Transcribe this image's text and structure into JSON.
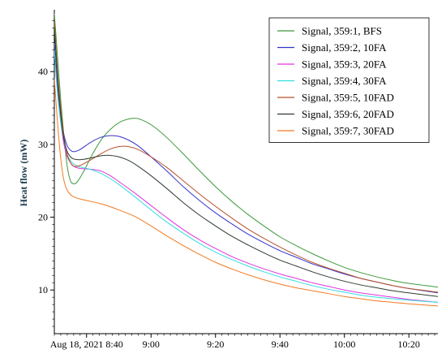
{
  "chart_data": {
    "type": "line",
    "title": "",
    "xlabel": "",
    "ylabel": "Heat flow (mW)",
    "x_unit": "minutes after 8:30",
    "xlim": [
      0,
      119
    ],
    "ylim": [
      4,
      48.5
    ],
    "x_ticks": [
      {
        "x": 10,
        "label": "Aug 18, 2021 8:40"
      },
      {
        "x": 30,
        "label": "9:00"
      },
      {
        "x": 50,
        "label": "9:20"
      },
      {
        "x": 70,
        "label": "9:40"
      },
      {
        "x": 90,
        "label": "10:00"
      },
      {
        "x": 110,
        "label": "10:20"
      }
    ],
    "y_ticks": [
      10,
      20,
      30,
      40
    ],
    "grid": false,
    "legend_position": "top-right",
    "series": [
      {
        "name": "Signal, 359:1, BFS",
        "color": "#3c9a3c",
        "points": [
          [
            0,
            48
          ],
          [
            1,
            42
          ],
          [
            2,
            36
          ],
          [
            3,
            31
          ],
          [
            4,
            27
          ],
          [
            5,
            25
          ],
          [
            6,
            24.6
          ],
          [
            7,
            24.8
          ],
          [
            9,
            26.2
          ],
          [
            12,
            28.8
          ],
          [
            15,
            30.9
          ],
          [
            18,
            32.3
          ],
          [
            21,
            33.2
          ],
          [
            25,
            33.6
          ],
          [
            28,
            33.2
          ],
          [
            31,
            32.4
          ],
          [
            35,
            30.9
          ],
          [
            40,
            28.7
          ],
          [
            45,
            26.4
          ],
          [
            50,
            24.2
          ],
          [
            55,
            22.2
          ],
          [
            60,
            20.4
          ],
          [
            65,
            18.8
          ],
          [
            70,
            17.3
          ],
          [
            75,
            16.1
          ],
          [
            80,
            15.0
          ],
          [
            85,
            14.0
          ],
          [
            90,
            13.1
          ],
          [
            95,
            12.4
          ],
          [
            100,
            11.8
          ],
          [
            105,
            11.3
          ],
          [
            110,
            10.9
          ],
          [
            119,
            10.4
          ]
        ]
      },
      {
        "name": "Signal, 359:2, 10FA",
        "color": "#3333cc",
        "points": [
          [
            0,
            44
          ],
          [
            1,
            38
          ],
          [
            2,
            34
          ],
          [
            3,
            31.3
          ],
          [
            4,
            29.8
          ],
          [
            5,
            29.2
          ],
          [
            6,
            29.0
          ],
          [
            8,
            29.3
          ],
          [
            11,
            30.2
          ],
          [
            14,
            30.9
          ],
          [
            17,
            31.2
          ],
          [
            20,
            31.1
          ],
          [
            23,
            30.6
          ],
          [
            26,
            29.8
          ],
          [
            30,
            28.3
          ],
          [
            35,
            26.3
          ],
          [
            40,
            24.2
          ],
          [
            45,
            22.3
          ],
          [
            50,
            20.6
          ],
          [
            55,
            19.1
          ],
          [
            60,
            17.7
          ],
          [
            65,
            16.5
          ],
          [
            70,
            15.4
          ],
          [
            75,
            14.5
          ],
          [
            80,
            13.6
          ],
          [
            85,
            12.9
          ],
          [
            90,
            12.2
          ],
          [
            95,
            11.6
          ],
          [
            100,
            11.1
          ],
          [
            105,
            10.6
          ],
          [
            110,
            10.2
          ],
          [
            119,
            9.6
          ]
        ]
      },
      {
        "name": "Signal, 359:3, 20FA",
        "color": "#e033e0",
        "points": [
          [
            0,
            43
          ],
          [
            1,
            37
          ],
          [
            2,
            33
          ],
          [
            3,
            30
          ],
          [
            4,
            28.3
          ],
          [
            5,
            27.5
          ],
          [
            6,
            27.0
          ],
          [
            8,
            26.7
          ],
          [
            11,
            26.6
          ],
          [
            14,
            26.4
          ],
          [
            17,
            25.8
          ],
          [
            20,
            24.9
          ],
          [
            25,
            23.3
          ],
          [
            30,
            21.6
          ],
          [
            35,
            19.9
          ],
          [
            40,
            18.3
          ],
          [
            45,
            16.9
          ],
          [
            50,
            15.7
          ],
          [
            55,
            14.6
          ],
          [
            60,
            13.7
          ],
          [
            65,
            12.9
          ],
          [
            70,
            12.2
          ],
          [
            75,
            11.6
          ],
          [
            80,
            11.0
          ],
          [
            85,
            10.5
          ],
          [
            90,
            10.0
          ],
          [
            95,
            9.6
          ],
          [
            100,
            9.3
          ],
          [
            105,
            9.0
          ],
          [
            110,
            8.7
          ],
          [
            119,
            8.3
          ]
        ]
      },
      {
        "name": "Signal, 359:4, 30FA",
        "color": "#33dddd",
        "points": [
          [
            0,
            43
          ],
          [
            1,
            37
          ],
          [
            2,
            33
          ],
          [
            3,
            30.5
          ],
          [
            4,
            28.6
          ],
          [
            5,
            27.8
          ],
          [
            6,
            27.3
          ],
          [
            8,
            26.9
          ],
          [
            11,
            26.6
          ],
          [
            14,
            26.1
          ],
          [
            17,
            25.4
          ],
          [
            20,
            24.5
          ],
          [
            25,
            22.8
          ],
          [
            30,
            21.0
          ],
          [
            35,
            19.3
          ],
          [
            40,
            17.8
          ],
          [
            45,
            16.4
          ],
          [
            50,
            15.2
          ],
          [
            55,
            14.2
          ],
          [
            60,
            13.3
          ],
          [
            65,
            12.5
          ],
          [
            70,
            11.8
          ],
          [
            75,
            11.2
          ],
          [
            80,
            10.6
          ],
          [
            85,
            10.1
          ],
          [
            90,
            9.7
          ],
          [
            95,
            9.3
          ],
          [
            100,
            9.0
          ],
          [
            105,
            8.8
          ],
          [
            110,
            8.6
          ],
          [
            119,
            8.3
          ]
        ]
      },
      {
        "name": "Signal, 359:5, 10FAD",
        "color": "#b8522a",
        "points": [
          [
            0,
            47
          ],
          [
            1,
            40
          ],
          [
            2,
            35
          ],
          [
            3,
            31
          ],
          [
            4,
            28.6
          ],
          [
            5,
            27.5
          ],
          [
            6,
            27.0
          ],
          [
            8,
            27.1
          ],
          [
            11,
            27.8
          ],
          [
            14,
            28.6
          ],
          [
            17,
            29.3
          ],
          [
            20,
            29.7
          ],
          [
            23,
            29.7
          ],
          [
            26,
            29.3
          ],
          [
            30,
            28.3
          ],
          [
            35,
            26.8
          ],
          [
            40,
            25.0
          ],
          [
            45,
            23.2
          ],
          [
            50,
            21.5
          ],
          [
            55,
            19.9
          ],
          [
            60,
            18.4
          ],
          [
            65,
            17.1
          ],
          [
            70,
            15.9
          ],
          [
            75,
            14.8
          ],
          [
            80,
            13.8
          ],
          [
            85,
            13.0
          ],
          [
            90,
            12.3
          ],
          [
            95,
            11.6
          ],
          [
            100,
            11.1
          ],
          [
            105,
            10.6
          ],
          [
            110,
            10.2
          ],
          [
            119,
            9.7
          ]
        ]
      },
      {
        "name": "Signal, 359:6, 20FAD",
        "color": "#2e3a2e",
        "points": [
          [
            0,
            46
          ],
          [
            1,
            39
          ],
          [
            2,
            34
          ],
          [
            3,
            30.6
          ],
          [
            4,
            29
          ],
          [
            5,
            28.3
          ],
          [
            6,
            28.0
          ],
          [
            8,
            27.9
          ],
          [
            11,
            28.1
          ],
          [
            14,
            28.4
          ],
          [
            17,
            28.5
          ],
          [
            20,
            28.3
          ],
          [
            23,
            27.8
          ],
          [
            26,
            27.0
          ],
          [
            30,
            25.7
          ],
          [
            35,
            23.9
          ],
          [
            40,
            22.0
          ],
          [
            45,
            20.3
          ],
          [
            50,
            18.8
          ],
          [
            55,
            17.4
          ],
          [
            60,
            16.2
          ],
          [
            65,
            15.1
          ],
          [
            70,
            14.1
          ],
          [
            75,
            13.3
          ],
          [
            80,
            12.5
          ],
          [
            85,
            11.8
          ],
          [
            90,
            11.2
          ],
          [
            95,
            10.7
          ],
          [
            100,
            10.3
          ],
          [
            105,
            9.9
          ],
          [
            110,
            9.6
          ],
          [
            119,
            9.1
          ]
        ]
      },
      {
        "name": "Signal, 359:7, 30FAD",
        "color": "#f07a22",
        "points": [
          [
            0,
            39
          ],
          [
            1,
            33
          ],
          [
            2,
            28
          ],
          [
            3,
            25
          ],
          [
            4,
            23.7
          ],
          [
            5,
            23.1
          ],
          [
            6,
            22.8
          ],
          [
            8,
            22.5
          ],
          [
            11,
            22.2
          ],
          [
            14,
            21.9
          ],
          [
            17,
            21.5
          ],
          [
            20,
            21.0
          ],
          [
            25,
            20.1
          ],
          [
            30,
            18.8
          ],
          [
            35,
            17.4
          ],
          [
            40,
            16.1
          ],
          [
            45,
            14.9
          ],
          [
            50,
            13.8
          ],
          [
            55,
            12.9
          ],
          [
            60,
            12.1
          ],
          [
            65,
            11.4
          ],
          [
            70,
            10.8
          ],
          [
            75,
            10.3
          ],
          [
            80,
            9.9
          ],
          [
            85,
            9.5
          ],
          [
            90,
            9.1
          ],
          [
            95,
            8.8
          ],
          [
            100,
            8.5
          ],
          [
            105,
            8.3
          ],
          [
            110,
            8.1
          ],
          [
            119,
            7.8
          ]
        ]
      }
    ]
  }
}
